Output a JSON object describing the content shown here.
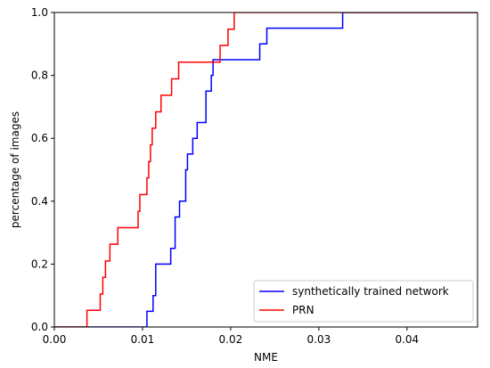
{
  "chart_data": {
    "type": "line",
    "title": "",
    "xlabel": "NME",
    "ylabel": "percentage of images",
    "xlim": [
      0.0,
      0.048
    ],
    "ylim": [
      0.0,
      1.0
    ],
    "x_ticks": [
      0.0,
      0.01,
      0.02,
      0.03,
      0.04
    ],
    "x_tick_labels": [
      "0.00",
      "0.01",
      "0.02",
      "0.03",
      "0.04"
    ],
    "y_ticks": [
      0.0,
      0.2,
      0.4,
      0.6,
      0.8,
      1.0
    ],
    "y_tick_labels": [
      "0.0",
      "0.2",
      "0.4",
      "0.6",
      "0.8",
      "1.0"
    ],
    "grid": false,
    "legend_position": "bottom-right",
    "step": true,
    "series": [
      {
        "name": "synthetically trained network",
        "color": "#0000ff",
        "x": [
          0.0,
          0.0105,
          0.0112,
          0.0115,
          0.0132,
          0.0137,
          0.0142,
          0.0149,
          0.0151,
          0.0157,
          0.0162,
          0.0172,
          0.0178,
          0.018,
          0.0233,
          0.0241,
          0.0327,
          0.048
        ],
        "y": [
          0.0,
          0.05,
          0.1,
          0.2,
          0.25,
          0.35,
          0.4,
          0.5,
          0.55,
          0.6,
          0.65,
          0.75,
          0.8,
          0.85,
          0.9,
          0.95,
          1.0,
          1.0
        ]
      },
      {
        "name": "PRN",
        "color": "#ff0000",
        "x": [
          0.0,
          0.0037,
          0.0052,
          0.0055,
          0.0058,
          0.0063,
          0.0072,
          0.0095,
          0.0097,
          0.0105,
          0.0107,
          0.0109,
          0.0111,
          0.0115,
          0.0121,
          0.0133,
          0.0141,
          0.0152,
          0.0188,
          0.0197,
          0.0204,
          0.048
        ],
        "y": [
          0.0,
          0.053,
          0.105,
          0.158,
          0.21,
          0.263,
          0.316,
          0.368,
          0.421,
          0.474,
          0.526,
          0.579,
          0.632,
          0.684,
          0.737,
          0.789,
          0.842,
          0.842,
          0.895,
          0.947,
          1.0,
          1.0
        ]
      }
    ]
  }
}
